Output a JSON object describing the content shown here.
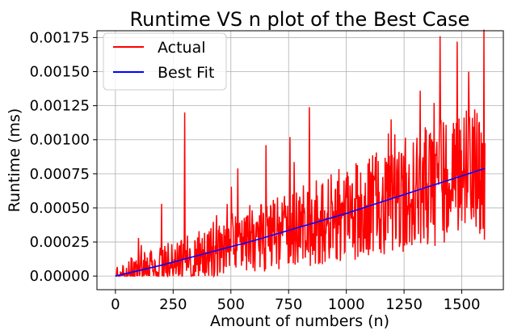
{
  "chart_data": {
    "type": "line",
    "title": "Runtime VS n plot of the Best Case",
    "xlabel": "Amount of numbers (n)",
    "ylabel": "Runtime (ms)",
    "xlim": [
      -80,
      1680
    ],
    "ylim": [
      -0.0001,
      0.0018
    ],
    "xticks": [
      0,
      250,
      500,
      750,
      1000,
      1250,
      1500
    ],
    "xtick_labels": [
      "0",
      "250",
      "500",
      "750",
      "1000",
      "1250",
      "1500"
    ],
    "yticks": [
      0,
      0.00025,
      0.0005,
      0.00075,
      0.001,
      0.00125,
      0.0015,
      0.00175
    ],
    "ytick_labels": [
      "0.00000",
      "0.00025",
      "0.00050",
      "0.00075",
      "0.00100",
      "0.00125",
      "0.00150",
      "0.00175"
    ],
    "grid": true,
    "legend_position": "top-left",
    "series": [
      {
        "name": "Actual",
        "color": "#ff0000",
        "x_range": [
          0,
          1600
        ],
        "trend": "noisy approximately linear increase from about 0.00000 to 0.00080 with spikes",
        "notable_points": [
          {
            "x": 200,
            "y": 0.00053
          },
          {
            "x": 300,
            "y": 0.0012
          },
          {
            "x": 530,
            "y": 0.00079
          },
          {
            "x": 840,
            "y": 0.00124
          },
          {
            "x": 1210,
            "y": 0.00104
          },
          {
            "x": 1320,
            "y": 0.00136
          },
          {
            "x": 1380,
            "y": 0.00127
          },
          {
            "x": 1405,
            "y": 0.00176
          },
          {
            "x": 1480,
            "y": 0.00172
          },
          {
            "x": 1530,
            "y": 0.0015
          }
        ]
      },
      {
        "name": "Best Fit",
        "color": "#0000ff",
        "x": [
          0,
          200,
          400,
          600,
          800,
          1000,
          1200,
          1400,
          1600
        ],
        "y": [
          0.0,
          8e-05,
          0.00017,
          0.00026,
          0.00036,
          0.00046,
          0.00057,
          0.00068,
          0.00079
        ]
      }
    ]
  }
}
